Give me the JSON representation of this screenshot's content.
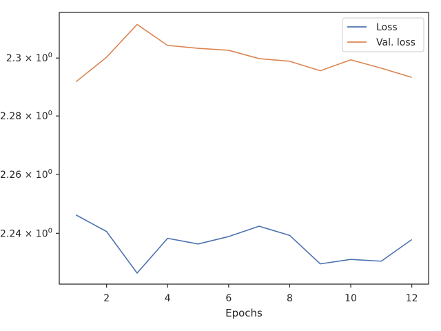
{
  "chart_data": {
    "type": "line",
    "xlabel": "Epochs",
    "ylabel": "",
    "x": [
      1,
      2,
      3,
      4,
      5,
      6,
      7,
      8,
      9,
      10,
      11,
      12
    ],
    "series": [
      {
        "name": "Loss",
        "color": "#4c72b0",
        "values": [
          2.2462,
          2.2406,
          2.2266,
          2.2383,
          2.2364,
          2.2389,
          2.2424,
          2.2393,
          2.2297,
          2.2312,
          2.2306,
          2.2379
        ]
      },
      {
        "name": "Val. loss",
        "color": "#dd8452",
        "values": [
          2.2918,
          2.3003,
          2.3117,
          2.3044,
          2.3034,
          2.3027,
          2.2998,
          2.2989,
          2.2956,
          2.2994,
          2.2965,
          2.2933
        ]
      }
    ],
    "xlim": [
      0.45,
      12.55
    ],
    "ylim": [
      2.2229,
      2.3159
    ],
    "x_ticks": [
      2,
      4,
      6,
      8,
      10,
      12
    ],
    "y_ticks": [
      {
        "value": 2.24,
        "mantissa": "2.24",
        "times": "×",
        "base": "10",
        "exp": "0"
      },
      {
        "value": 2.26,
        "mantissa": "2.26",
        "times": "×",
        "base": "10",
        "exp": "0"
      },
      {
        "value": 2.28,
        "mantissa": "2.28",
        "times": "×",
        "base": "10",
        "exp": "0"
      },
      {
        "value": 2.3,
        "mantissa": "2.3",
        "times": "×",
        "base": "10",
        "exp": "0"
      }
    ],
    "y_scale": "log",
    "grid": false,
    "legend_position": "top-right"
  }
}
